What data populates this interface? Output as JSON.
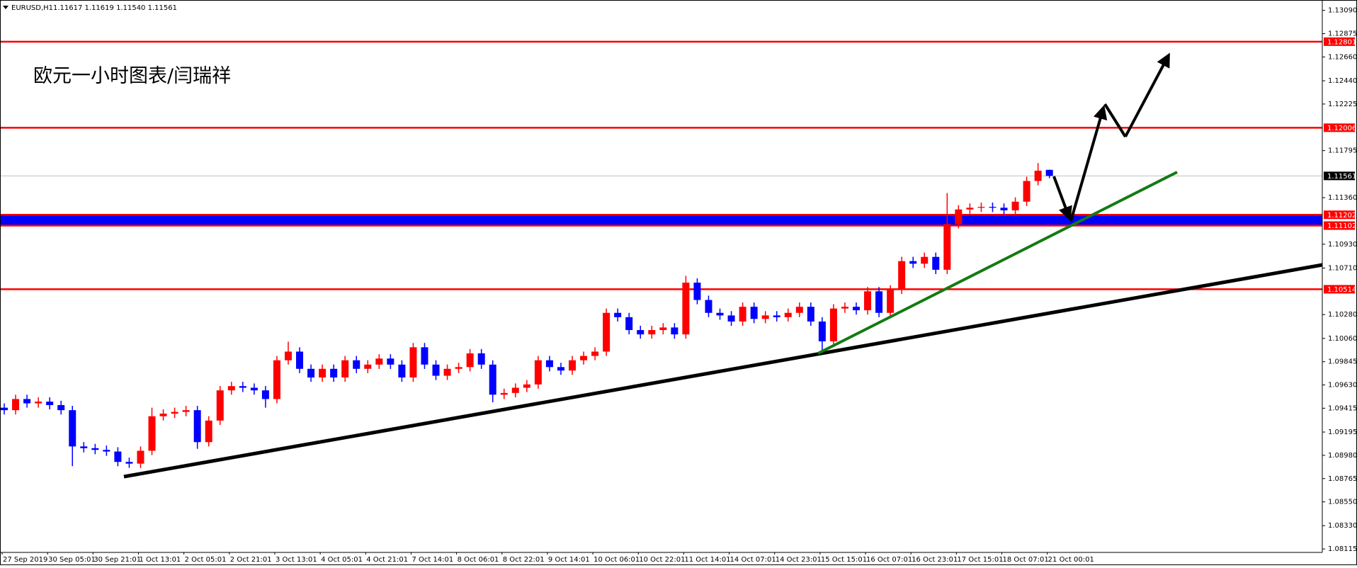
{
  "chart_data": {
    "type": "candlestick",
    "symbol": "EURUSD,H1",
    "quote": "1.11617 1.11619 1.11540 1.11561",
    "annotation": "欧元一小时图表/闫瑞祥",
    "categories": [
      "27 Sep 2019",
      null,
      null,
      null,
      "30 Sep 05:01",
      null,
      null,
      null,
      "30 Sep 21:01",
      null,
      null,
      null,
      "1 Oct 13:01",
      null,
      null,
      null,
      "2 Oct 05:01",
      null,
      null,
      null,
      "2 Oct 21:01",
      null,
      null,
      null,
      "3 Oct 13:01",
      null,
      null,
      null,
      "4 Oct 05:01",
      null,
      null,
      null,
      "4 Oct 21:01",
      null,
      null,
      null,
      "7 Oct 14:01",
      null,
      null,
      null,
      "8 Oct 06:01",
      null,
      null,
      null,
      "8 Oct 22:01",
      null,
      null,
      null,
      "9 Oct 14:01",
      null,
      null,
      null,
      "10 Oct 06:01",
      null,
      null,
      null,
      "10 Oct 22:01",
      null,
      null,
      null,
      "11 Oct 14:01",
      null,
      null,
      null,
      "14 Oct 07:01",
      null,
      null,
      null,
      "14 Oct 23:01",
      null,
      null,
      null,
      "15 Oct 15:01",
      null,
      null,
      null,
      "16 Oct 07:01",
      null,
      null,
      null,
      "16 Oct 23:01",
      null,
      null,
      null,
      "17 Oct 15:01",
      null,
      null,
      null,
      "18 Oct 07:01",
      null,
      null,
      null,
      "21 Oct 00:01"
    ],
    "open": [
      1.0942,
      1.09397,
      1.095,
      1.0946,
      1.09476,
      1.09444,
      1.09397,
      1.09062,
      1.09046,
      1.0903,
      1.09015,
      1.08919,
      1.08903,
      1.09022,
      1.09341,
      1.09365,
      1.09381,
      1.09397,
      1.09102,
      1.09301,
      1.0958,
      1.09619,
      1.09604,
      1.0958,
      1.095,
      1.09858,
      1.09938,
      1.09779,
      1.09699,
      1.09779,
      1.09699,
      1.09858,
      1.09779,
      1.09818,
      1.09874,
      1.09818,
      1.09699,
      1.09978,
      1.09818,
      1.09715,
      1.09779,
      1.09795,
      1.09922,
      1.09818,
      1.0954,
      1.09556,
      1.09604,
      1.09635,
      1.09858,
      1.09795,
      1.09763,
      1.09858,
      1.09898,
      1.09938,
      1.10296,
      1.10256,
      1.10137,
      1.10097,
      1.10137,
      1.10161,
      1.10097,
      1.10575,
      1.10415,
      1.10296,
      1.10272,
      1.10216,
      1.10352,
      1.1024,
      1.10272,
      1.10256,
      1.10296,
      1.10352,
      1.10216,
      1.10033,
      1.10336,
      1.10352,
      1.1032,
      1.10495,
      1.10296,
      1.10511,
      1.10774,
      1.1075,
      1.10813,
      1.10694,
      1.11116,
      1.11251,
      1.11267,
      1.11275,
      1.11267,
      1.11243,
      1.11323,
      1.11514,
      1.11617
    ],
    "high": [
      1.0946,
      1.0954,
      1.0954,
      1.09516,
      1.09516,
      1.09484,
      1.09437,
      1.09102,
      1.09086,
      1.0907,
      1.09055,
      1.08959,
      1.09062,
      1.0942,
      1.09405,
      1.09421,
      1.09437,
      1.09437,
      1.09341,
      1.0962,
      1.09659,
      1.09659,
      1.09644,
      1.0962,
      1.09898,
      1.1003,
      1.09978,
      1.09819,
      1.09819,
      1.09819,
      1.09898,
      1.09898,
      1.09858,
      1.09914,
      1.09914,
      1.09858,
      1.10018,
      1.10018,
      1.09858,
      1.09819,
      1.09835,
      1.09962,
      1.09962,
      1.09858,
      1.09596,
      1.09644,
      1.09675,
      1.09898,
      1.09898,
      1.09835,
      1.09898,
      1.09938,
      1.09978,
      1.10336,
      1.10336,
      1.10296,
      1.10177,
      1.10177,
      1.10201,
      1.10201,
      1.10638,
      1.10615,
      1.10455,
      1.10336,
      1.10312,
      1.10392,
      1.10392,
      1.10312,
      1.10312,
      1.10336,
      1.10392,
      1.10392,
      1.10256,
      1.10376,
      1.10392,
      1.10392,
      1.10535,
      1.10535,
      1.10551,
      1.10814,
      1.10814,
      1.10853,
      1.10853,
      1.11403,
      1.11291,
      1.11307,
      1.11315,
      1.11315,
      1.11307,
      1.11363,
      1.11554,
      1.1168,
      1.11619
    ],
    "low": [
      1.09357,
      1.09357,
      1.0942,
      1.0942,
      1.09404,
      1.09357,
      1.0888,
      1.09006,
      1.0899,
      1.08975,
      1.08879,
      1.08864,
      1.08863,
      1.08982,
      1.09301,
      1.09325,
      1.09341,
      1.0904,
      1.09062,
      1.09261,
      1.0954,
      1.09564,
      1.0954,
      1.0942,
      1.0946,
      1.09818,
      1.09739,
      1.09659,
      1.09659,
      1.09659,
      1.09659,
      1.09739,
      1.09739,
      1.09778,
      1.09778,
      1.09659,
      1.09659,
      1.09778,
      1.09675,
      1.09675,
      1.09739,
      1.09755,
      1.09778,
      1.0947,
      1.095,
      1.09516,
      1.09564,
      1.09595,
      1.09755,
      1.09723,
      1.09723,
      1.09818,
      1.09858,
      1.09898,
      1.10216,
      1.10097,
      1.10057,
      1.10057,
      1.10097,
      1.10057,
      1.10057,
      1.10375,
      1.10256,
      1.10232,
      1.10176,
      1.10176,
      1.102,
      1.102,
      1.10216,
      1.10216,
      1.10256,
      1.10176,
      1.09954,
      1.09993,
      1.10296,
      1.1028,
      1.1028,
      1.10256,
      1.10256,
      1.10471,
      1.1071,
      1.1071,
      1.10654,
      1.10654,
      1.11076,
      1.11211,
      1.11227,
      1.11227,
      1.11203,
      1.11203,
      1.11283,
      1.11474,
      1.1154
    ],
    "close": [
      1.09397,
      1.095,
      1.0946,
      1.09476,
      1.09444,
      1.09397,
      1.09062,
      1.09046,
      1.0903,
      1.09015,
      1.08919,
      1.08903,
      1.09022,
      1.09341,
      1.09365,
      1.09381,
      1.09397,
      1.09102,
      1.09301,
      1.0958,
      1.09619,
      1.09604,
      1.0958,
      1.095,
      1.09858,
      1.09938,
      1.09779,
      1.09699,
      1.09779,
      1.09699,
      1.09858,
      1.09779,
      1.09818,
      1.09874,
      1.09818,
      1.09699,
      1.09978,
      1.09818,
      1.09715,
      1.09779,
      1.09795,
      1.09922,
      1.09818,
      1.0954,
      1.09556,
      1.09604,
      1.09635,
      1.09858,
      1.09795,
      1.09763,
      1.09858,
      1.09898,
      1.09938,
      1.10296,
      1.10256,
      1.10137,
      1.10097,
      1.10137,
      1.10161,
      1.10097,
      1.10575,
      1.10415,
      1.10296,
      1.10272,
      1.10216,
      1.10352,
      1.1024,
      1.10272,
      1.10256,
      1.10296,
      1.10352,
      1.10216,
      1.10033,
      1.10336,
      1.10352,
      1.1032,
      1.10495,
      1.10296,
      1.10511,
      1.10774,
      1.1075,
      1.10813,
      1.10694,
      1.11116,
      1.11251,
      1.11267,
      1.11275,
      1.11267,
      1.11243,
      1.11323,
      1.11514,
      1.11609,
      1.11561
    ],
    "up_color": "#ff0000",
    "down_color": "#0000ff",
    "price_line_color": "#c0c0c0",
    "levels": [
      {
        "value": 1.12801,
        "color": "#ff0000"
      },
      {
        "value": 1.12006,
        "color": "#ff0000"
      },
      {
        "value": 1.11202,
        "color": "#ff0000",
        "zone_color": "#0000ff"
      },
      {
        "value": 1.11102,
        "color": "#ff0000",
        "zone_color": "#0000ff"
      },
      {
        "value": 1.10514,
        "color": "#ff0000"
      }
    ],
    "ylim": [
      1.08083,
      1.13186
    ],
    "yticks": [
      {
        "value": 1.1309,
        "label": "1.13090"
      },
      {
        "value": 1.12875,
        "label": "1.12875"
      },
      {
        "value": 1.1266,
        "label": "1.12660"
      },
      {
        "value": 1.1244,
        "label": "1.12440"
      },
      {
        "value": 1.12225,
        "label": "1.12225"
      },
      {
        "value": 1.11795,
        "label": "1.11795"
      },
      {
        "value": 1.1136,
        "label": "1.11360"
      },
      {
        "value": 1.1093,
        "label": "1.10930"
      },
      {
        "value": 1.1071,
        "label": "1.10710"
      },
      {
        "value": 1.1028,
        "label": "1.10280"
      },
      {
        "value": 1.1006,
        "label": "1.10060"
      },
      {
        "value": 1.09845,
        "label": "1.09845"
      },
      {
        "value": 1.0963,
        "label": "1.09630"
      },
      {
        "value": 1.09415,
        "label": "1.09415"
      },
      {
        "value": 1.09195,
        "label": "1.09195"
      },
      {
        "value": 1.0898,
        "label": "1.08980"
      },
      {
        "value": 1.08765,
        "label": "1.08765"
      },
      {
        "value": 1.0855,
        "label": "1.08550"
      },
      {
        "value": 1.0833,
        "label": "1.08330"
      },
      {
        "value": 1.08115,
        "label": "1.08115"
      }
    ],
    "grid": false
  }
}
